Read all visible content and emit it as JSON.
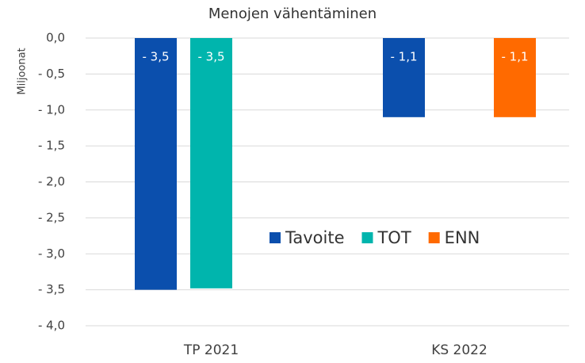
{
  "chart_data": {
    "type": "bar",
    "title": "Menojen vähentäminen",
    "y_label": "Miljoonat",
    "categories": [
      "TP 2021",
      "KS 2022"
    ],
    "series": [
      {
        "name": "Tavoite",
        "color": "#0b4fad",
        "values": [
          -3.5,
          -1.1
        ],
        "value_labels": [
          "- 3,5",
          "- 1,1"
        ]
      },
      {
        "name": "TOT",
        "color": "#00b5ad",
        "values": [
          -3.48,
          null
        ],
        "value_labels": [
          "- 3,5",
          null
        ]
      },
      {
        "name": "ENN",
        "color": "#ff6a00",
        "values": [
          null,
          -1.1
        ],
        "value_labels": [
          null,
          "- 1,1"
        ]
      }
    ],
    "ylim": [
      -4,
      0
    ],
    "yticks": [
      {
        "value": 0,
        "label": "0,0"
      },
      {
        "value": -0.5,
        "label": "- 0,5"
      },
      {
        "value": -1,
        "label": "- 1,0"
      },
      {
        "value": -1.5,
        "label": "- 1,5"
      },
      {
        "value": -2,
        "label": "- 2,0"
      },
      {
        "value": -2.5,
        "label": "- 2,5"
      },
      {
        "value": -3,
        "label": "- 3,0"
      },
      {
        "value": -3.5,
        "label": "- 3,5"
      },
      {
        "value": -4,
        "label": "- 4,0"
      }
    ],
    "grid": true
  }
}
